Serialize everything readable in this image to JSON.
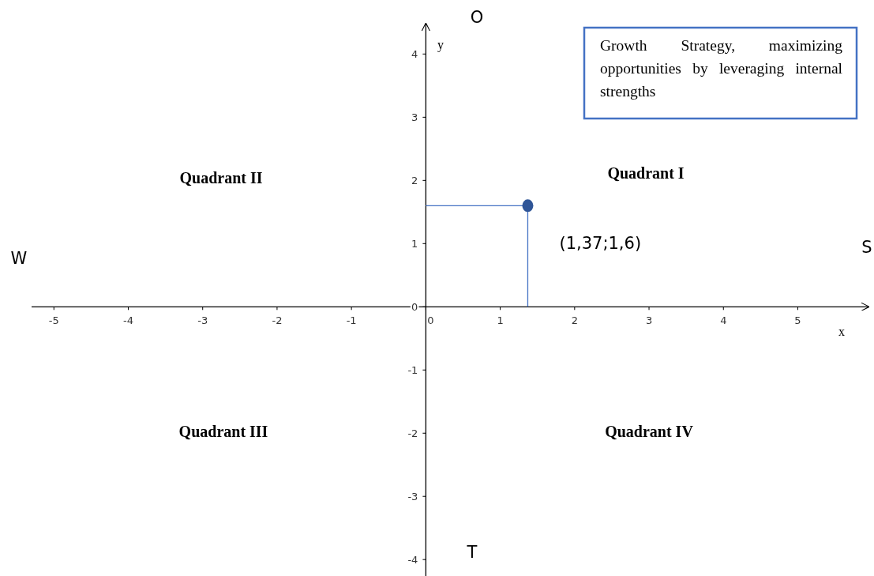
{
  "chart_data": {
    "type": "scatter",
    "xlabel": "x",
    "ylabel": "y",
    "xlim": [
      -5.3,
      5.95
    ],
    "ylim": [
      -4.26,
      4.48
    ],
    "xticks": [
      -5,
      -4,
      -3,
      -2,
      -1,
      0,
      1,
      2,
      3,
      4,
      5
    ],
    "yticks": [
      -4,
      -3,
      -2,
      -1,
      0,
      1,
      2,
      3,
      4
    ],
    "grid": false,
    "marker": "circle",
    "series": [
      {
        "color": "#2f5597",
        "x": [
          1.37
        ],
        "values": [
          1.6
        ]
      }
    ],
    "annotations": [
      {
        "text": "(1,37;1,6)",
        "x": 1.37,
        "y": 1.6
      },
      "Growth Strategy, maximizing opportunities by leveraging internal strengths",
      "Quadrant I",
      "Quadrant II",
      "Quadrant III",
      "Quadrant IV",
      "O",
      "T",
      "W",
      "S"
    ]
  }
}
